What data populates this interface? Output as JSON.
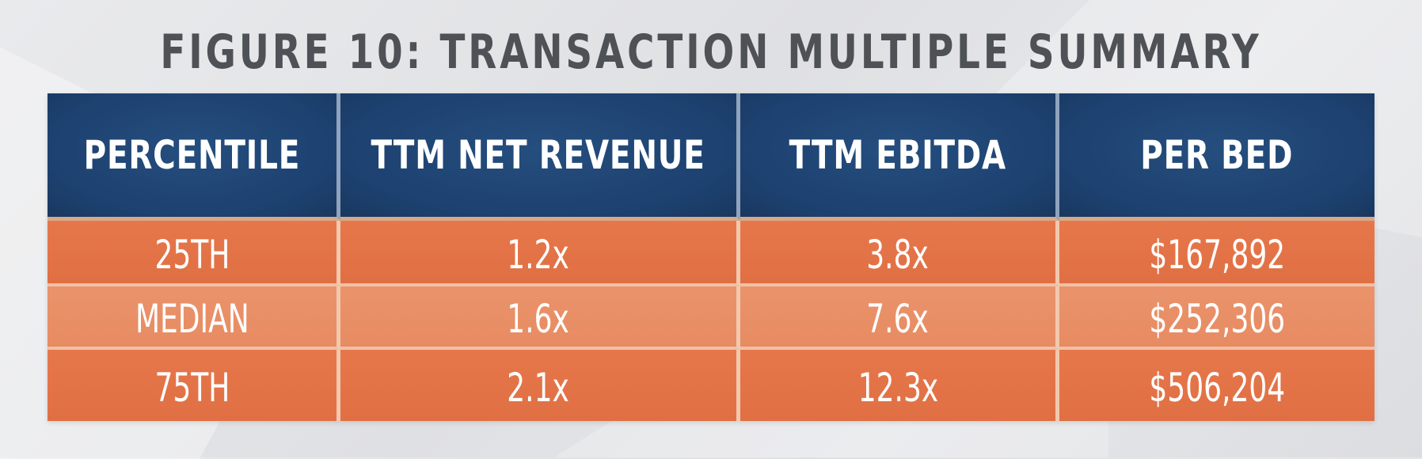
{
  "title": "FIGURE 10: TRANSACTION MULTIPLE SUMMARY",
  "colors": {
    "header_bg": "#1d4170",
    "row_dark": "#e07044",
    "row_light": "#e78b62",
    "title_text": "#4e5155",
    "cell_text": "#ffffff"
  },
  "chart_data": {
    "type": "table",
    "title": "FIGURE 10: TRANSACTION MULTIPLE SUMMARY",
    "columns": [
      "PERCENTILE",
      "TTM NET REVENUE",
      "TTM EBITDA",
      "PER BED"
    ],
    "rows": [
      [
        "25TH",
        "1.2x",
        "3.8x",
        "$167,892"
      ],
      [
        "MEDIAN",
        "1.6x",
        "7.6x",
        "$252,306"
      ],
      [
        "75TH",
        "2.1x",
        "12.3x",
        "$506,204"
      ]
    ]
  }
}
